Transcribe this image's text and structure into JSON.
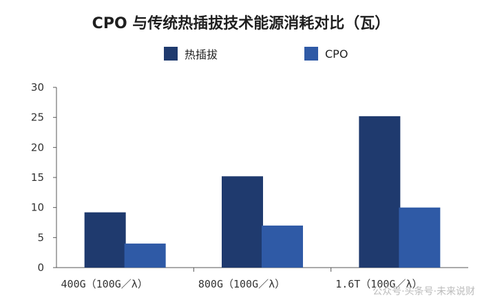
{
  "chart_data": {
    "type": "bar",
    "title": "CPO 与传统热插拔技术能源消耗对比（瓦）",
    "categories": [
      "400G（100G／λ）",
      "800G（100G／λ）",
      "1.6T（100G／λ）"
    ],
    "series": [
      {
        "name": "热插拔",
        "values": [
          9.2,
          15.2,
          25.2
        ],
        "color": "#1f3a6e"
      },
      {
        "name": "CPO",
        "values": [
          4.0,
          7.0,
          10.0
        ],
        "color": "#2f5aa6"
      }
    ],
    "yticks": [
      "0",
      "5",
      "10",
      "15",
      "20",
      "25",
      "30"
    ],
    "ylim": [
      0,
      30
    ],
    "grid": false,
    "legend": "top-center",
    "xlabel": "",
    "ylabel": ""
  },
  "watermark": "公众号·头条号·未来说财"
}
